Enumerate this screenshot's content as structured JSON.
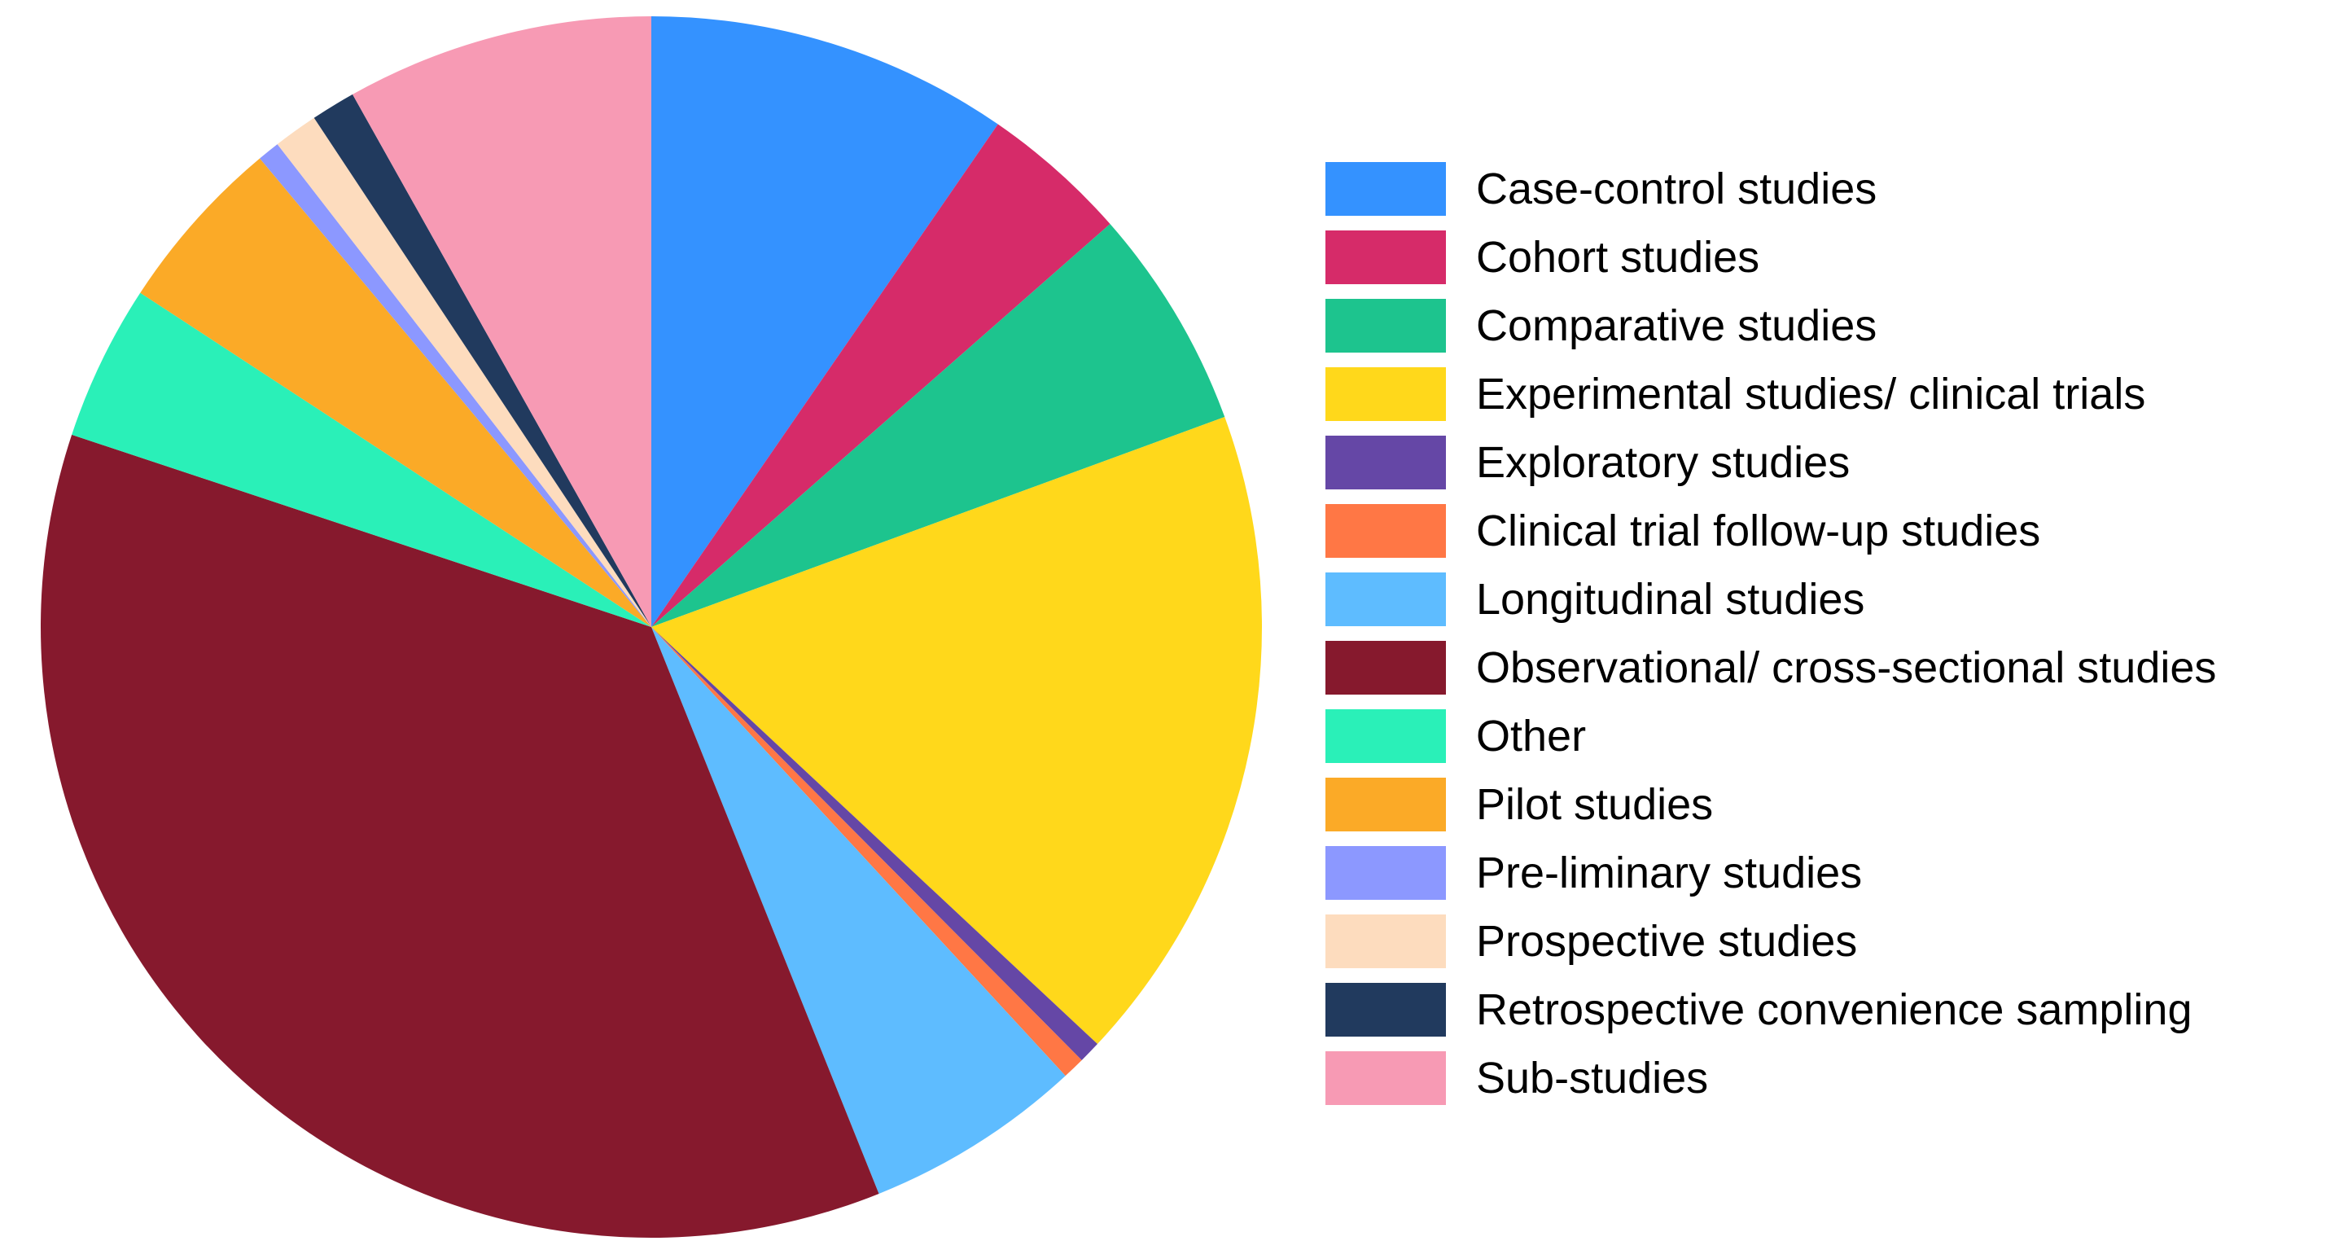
{
  "chart_data": {
    "type": "pie",
    "title": "",
    "legend_position": "right",
    "slices": [
      {
        "label": "Case-control studies",
        "value": 9.8,
        "color": "#3492FF"
      },
      {
        "label": "Cohort studies",
        "value": 4.0,
        "color": "#D62B69"
      },
      {
        "label": "Comparative studies",
        "value": 6.0,
        "color": "#1DC48E"
      },
      {
        "label": "Experimental studies/ clinical trials",
        "value": 17.9,
        "color": "#FFD81B"
      },
      {
        "label": "Exploratory studies",
        "value": 0.6,
        "color": "#6547A6"
      },
      {
        "label": "Clinical trial follow-up studies",
        "value": 0.6,
        "color": "#FF7745"
      },
      {
        "label": "Longitudinal studies",
        "value": 5.9,
        "color": "#5EBCFF"
      },
      {
        "label": "Observational/ cross-sectional studies",
        "value": 36.9,
        "color": "#86192D"
      },
      {
        "label": "Other",
        "value": 4.2,
        "color": "#2AF0B8"
      },
      {
        "label": "Pilot studies",
        "value": 4.8,
        "color": "#FBAA27"
      },
      {
        "label": "Pre-liminary studies",
        "value": 0.6,
        "color": "#8C98FF"
      },
      {
        "label": "Prospective studies",
        "value": 1.2,
        "color": "#FDDCBE"
      },
      {
        "label": "Retrospective convenience sampling",
        "value": 1.2,
        "color": "#213A5E"
      },
      {
        "label": "Sub-studies",
        "value": 8.3,
        "color": "#F79AB4"
      }
    ]
  }
}
